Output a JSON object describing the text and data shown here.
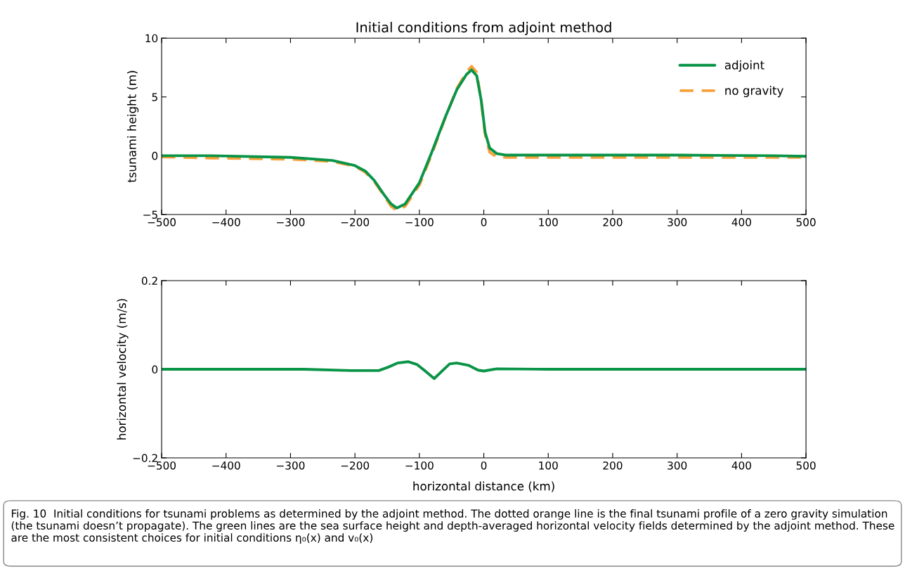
{
  "chart_data": [
    {
      "type": "line",
      "title": "Initial conditions from adjoint method",
      "ylabel": "tsunami height (m)",
      "xlim": [
        -500,
        500
      ],
      "xticks": [
        -500,
        -400,
        -300,
        -200,
        -100,
        0,
        100,
        200,
        300,
        400,
        500
      ],
      "ylim": [
        -5,
        10
      ],
      "yticks": [
        -5,
        0,
        5,
        10
      ],
      "grid": false,
      "legend": "top right",
      "series": [
        {
          "name": "no gravity",
          "color": "#f7a13a",
          "line_style": "dashed",
          "x": [
            -500,
            -424,
            -300,
            -235,
            -200,
            -184,
            -170,
            -155,
            -144,
            -135,
            -122,
            -100,
            -81,
            -60,
            -42,
            -27,
            -19,
            -11,
            -4,
            2,
            9,
            20,
            35,
            100,
            300,
            500
          ],
          "values": [
            -0.1,
            -0.2,
            -0.3,
            -0.5,
            -0.9,
            -1.4,
            -2.2,
            -3.4,
            -4.3,
            -4.65,
            -4.3,
            -2.5,
            0.1,
            3.2,
            5.7,
            7.1,
            7.6,
            7.1,
            4.6,
            1.8,
            0.3,
            -0.1,
            -0.15,
            -0.15,
            -0.15,
            -0.15
          ]
        },
        {
          "name": "adjoint",
          "color": "#0a9447",
          "line_style": "solid",
          "x": [
            -500,
            -424,
            -300,
            -235,
            -200,
            -184,
            -170,
            -155,
            -144,
            -135,
            -122,
            -100,
            -81,
            -60,
            -42,
            -27,
            -19,
            -11,
            -4,
            2,
            9,
            20,
            35,
            100,
            300,
            450,
            500
          ],
          "values": [
            0,
            0,
            -0.14,
            -0.4,
            -0.84,
            -1.3,
            -2.1,
            -3.3,
            -4.1,
            -4.45,
            -4.1,
            -2.3,
            0.26,
            3.25,
            5.6,
            6.9,
            7.3,
            6.8,
            4.7,
            2.0,
            0.66,
            0.18,
            0.05,
            0.05,
            0.05,
            0,
            -0.05
          ]
        }
      ]
    },
    {
      "type": "line",
      "ylabel": "horizontal velocity (m/s)",
      "xlabel": "horizontal distance (km)",
      "xlim": [
        -500,
        500
      ],
      "xticks": [
        -500,
        -400,
        -300,
        -200,
        -100,
        0,
        100,
        200,
        300,
        400,
        500
      ],
      "ylim": [
        -0.2,
        0.2
      ],
      "yticks": [
        -0.2,
        0,
        0.2
      ],
      "grid": false,
      "legend": false,
      "series": [
        {
          "color": "#0a9447",
          "line_style": "solid",
          "x": [
            -500,
            -424,
            -279,
            -206,
            -163,
            -148,
            -134,
            -117,
            -104,
            -90,
            -77,
            -64,
            -53,
            -42,
            -24,
            -9,
            0,
            20,
            100,
            300,
            500
          ],
          "values": [
            0,
            0,
            0,
            -0.003,
            -0.003,
            0.005,
            0.014,
            0.017,
            0.011,
            -0.005,
            -0.021,
            -0.003,
            0.012,
            0.014,
            0.009,
            -0.002,
            -0.004,
            0.001,
            0,
            0,
            0
          ]
        }
      ],
      "annotations": [
        "Fig. 10  Initial conditions for tsunami problems as determined by the adjoint method. The dotted orange line is the final tsunami profile of a zero gravity simulation (the tsunami doesn’t propagate). The green lines are the sea surface height and depth-averaged horizontal velocity fields determined by the adjoint method. These are the most consistent choices for initial conditions η₀(x) and v₀(x)"
      ]
    }
  ]
}
